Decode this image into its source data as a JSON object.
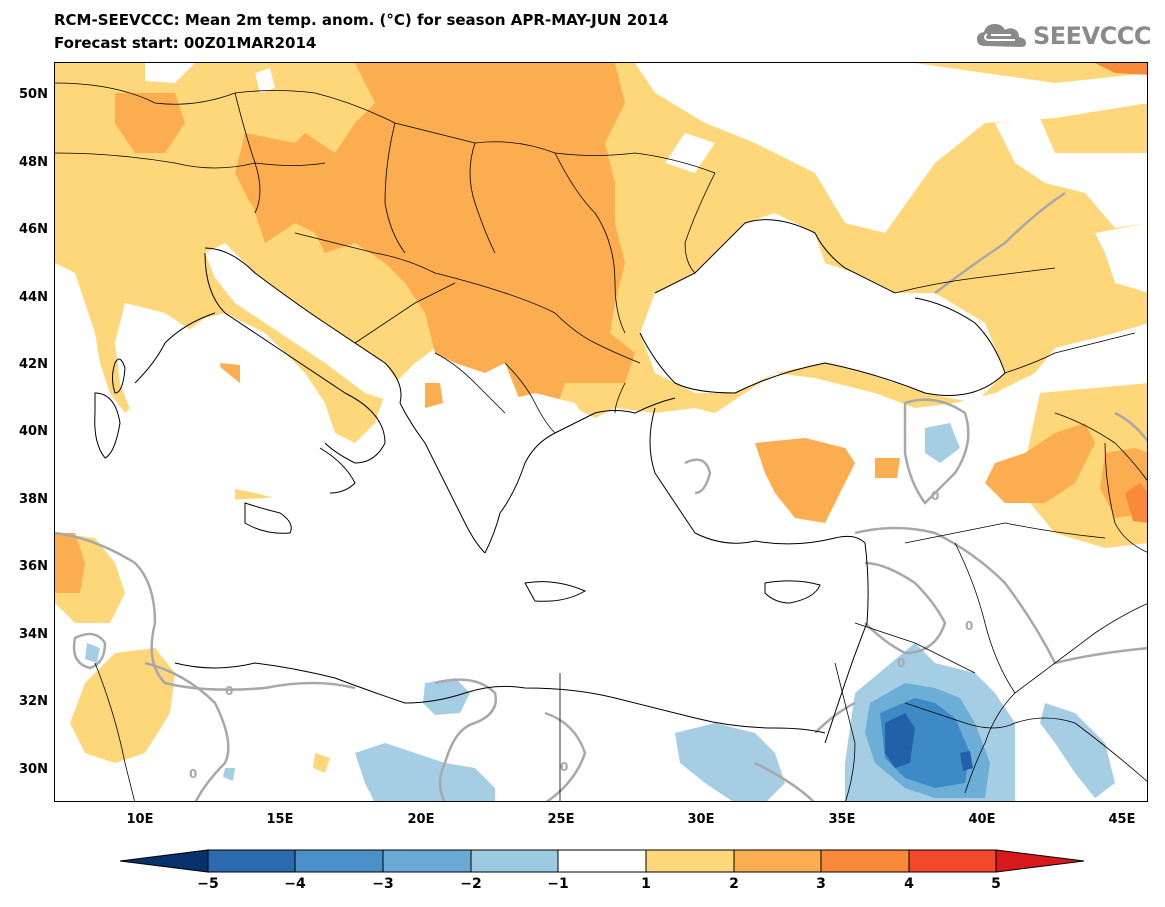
{
  "header": {
    "title_line1": "RCM-SEEVCCC: Mean 2m temp. anom. (°C) for season APR-MAY-JUN 2014",
    "title_line2": "Forecast start: 00Z01MAR2014"
  },
  "logo": {
    "text": "SEEVCCC",
    "icon": "cloud-logo-icon",
    "color": "#8a8a8a"
  },
  "map": {
    "lat_labels": [
      "50N",
      "48N",
      "46N",
      "44N",
      "42N",
      "40N",
      "38N",
      "36N",
      "34N",
      "32N",
      "30N"
    ],
    "lon_labels": [
      "10E",
      "15E",
      "20E",
      "25E",
      "30E",
      "35E",
      "40E",
      "45E"
    ],
    "contour_label": "0",
    "colors": {
      "warm_1_2": "#fdd779",
      "warm_2_3": "#fcad4f",
      "warm_3_4": "#f98a3a",
      "warm_4_5": "#f3492a",
      "cool_1_2": "#a5cde4",
      "cool_2_3": "#6caed6",
      "cool_3_4": "#3e8ac4",
      "cool_4_5": "#2061a8",
      "contour": "#a8a8a8",
      "coast": "#000000"
    }
  },
  "colorbar": {
    "labels": [
      "−5",
      "−4",
      "−3",
      "−2",
      "−1",
      "1",
      "2",
      "3",
      "4",
      "5"
    ],
    "colors": [
      "#08306b",
      "#2a6bb0",
      "#4a8fc8",
      "#6aa9d6",
      "#9ecae1",
      "#ffffff",
      "#fdd779",
      "#fcad4f",
      "#f98a3a",
      "#f3492a",
      "#d7191c"
    ]
  }
}
